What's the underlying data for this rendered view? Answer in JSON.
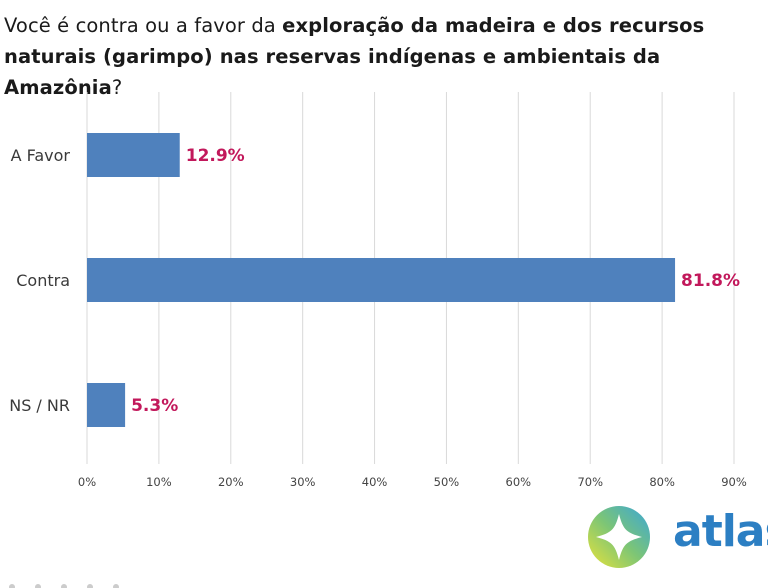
{
  "title": {
    "part1": "Você é contra ou a favor da ",
    "bold": "exploração da madeira e dos recursos naturais (garimpo) nas reservas indígenas e ambientais da Amazônia",
    "part2": "?"
  },
  "logo": {
    "text": "atlas",
    "icon": "atlas-compass-logo-icon"
  },
  "colors": {
    "bar": "#4f81bd",
    "value_label": "#c2185b",
    "logo_text": "#2c7fc3"
  },
  "chart_data": {
    "type": "bar",
    "orientation": "horizontal",
    "categories": [
      "A Favor",
      "Contra",
      "NS / NR"
    ],
    "values": [
      12.9,
      81.8,
      5.3
    ],
    "value_labels": [
      "12.9%",
      "81.8%",
      "5.3%"
    ],
    "xlim": [
      0,
      90
    ],
    "xticks": [
      0,
      10,
      20,
      30,
      40,
      50,
      60,
      70,
      80,
      90
    ],
    "xtick_labels": [
      "0%",
      "10%",
      "20%",
      "30%",
      "40%",
      "50%",
      "60%",
      "70%",
      "80%",
      "90%"
    ],
    "grid": true,
    "legend": "none"
  }
}
